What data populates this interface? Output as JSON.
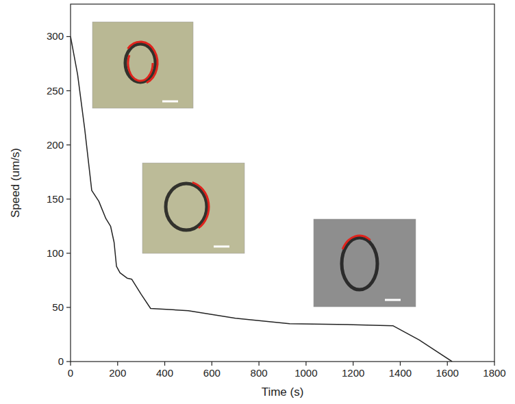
{
  "chart_data": {
    "type": "line",
    "x_label": "Time (s)",
    "y_label": "Speed (um/s)",
    "x": [
      0,
      30,
      60,
      90,
      120,
      150,
      170,
      185,
      195,
      210,
      240,
      260,
      300,
      340,
      500,
      700,
      930,
      1200,
      1370,
      1480,
      1620
    ],
    "values": [
      300,
      265,
      215,
      158,
      148,
      132,
      125,
      110,
      88,
      82,
      77,
      76,
      62,
      49,
      47,
      40,
      35,
      34,
      33,
      20,
      0
    ],
    "color": "#222222",
    "xlim": [
      0,
      1800
    ],
    "xticks": [
      0,
      200,
      400,
      600,
      800,
      1000,
      1200,
      1400,
      1600,
      1800
    ],
    "ylim": [
      0,
      330
    ],
    "yticks": [
      0,
      50,
      100,
      150,
      200,
      250,
      300
    ],
    "grid": false
  }
}
